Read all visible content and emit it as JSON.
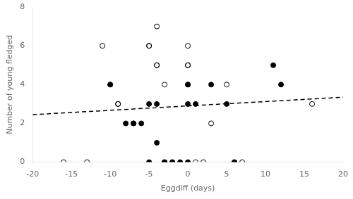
{
  "chart_data": {
    "type": "scatter",
    "xlabel": "Eggdiff (days)",
    "ylabel": "Number of young fledged",
    "xlim": [
      -20,
      20
    ],
    "ylim": [
      0,
      8
    ],
    "xticks": [
      -20,
      -15,
      -10,
      -5,
      0,
      5,
      10,
      15,
      20
    ],
    "yticks": [
      0,
      2,
      4,
      6,
      8
    ],
    "grid": false,
    "series": [
      {
        "type": "scatter",
        "marker": "circle_open",
        "color": "#000000",
        "x": [
          -16,
          -13,
          -11,
          -10,
          -9,
          -9,
          -5,
          -5,
          -4,
          -4,
          -4,
          -3,
          -3,
          -2,
          0,
          0,
          0,
          0,
          1,
          2,
          3,
          5,
          6,
          7,
          16
        ],
        "values": [
          0,
          0,
          6,
          4,
          3,
          3,
          6,
          6,
          7,
          5,
          5,
          4,
          0,
          0,
          5,
          5,
          4,
          6,
          0,
          0,
          2,
          4,
          0,
          0,
          3
        ]
      },
      {
        "type": "scatter",
        "marker": "circle",
        "color": "#000000",
        "x": [
          -10,
          -8,
          -7,
          -7,
          -6,
          -5,
          -5,
          -4,
          -4,
          -3,
          -3,
          -2,
          -1,
          0,
          0,
          0,
          1,
          3,
          5,
          6,
          11,
          12
        ],
        "values": [
          4,
          2,
          2,
          2,
          2,
          3,
          0,
          3,
          1,
          0,
          0,
          0,
          0,
          4,
          3,
          0,
          3,
          4,
          3,
          0,
          5,
          4
        ]
      },
      {
        "type": "line",
        "line_style": "dashed",
        "color": "#000000",
        "x": [
          -20,
          20
        ],
        "values": [
          2.45,
          3.35
        ]
      }
    ]
  }
}
